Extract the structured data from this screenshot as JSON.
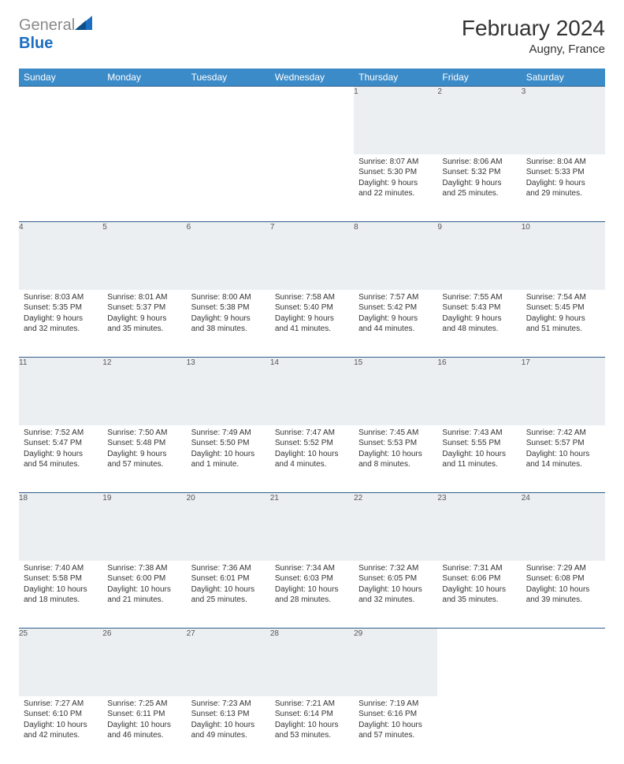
{
  "logo": {
    "general": "General",
    "blue": "Blue"
  },
  "title": "February 2024",
  "location": "Augny, France",
  "colors": {
    "header_bg": "#3b8bc9",
    "header_text": "#ffffff",
    "daynum_bg": "#eceff1",
    "border": "#2e5d8a",
    "logo_gray": "#8a8a8a",
    "logo_blue": "#1b6ec2"
  },
  "weekdays": [
    "Sunday",
    "Monday",
    "Tuesday",
    "Wednesday",
    "Thursday",
    "Friday",
    "Saturday"
  ],
  "weeks": [
    [
      null,
      null,
      null,
      null,
      {
        "n": "1",
        "sr": "Sunrise: 8:07 AM",
        "ss": "Sunset: 5:30 PM",
        "d1": "Daylight: 9 hours",
        "d2": "and 22 minutes."
      },
      {
        "n": "2",
        "sr": "Sunrise: 8:06 AM",
        "ss": "Sunset: 5:32 PM",
        "d1": "Daylight: 9 hours",
        "d2": "and 25 minutes."
      },
      {
        "n": "3",
        "sr": "Sunrise: 8:04 AM",
        "ss": "Sunset: 5:33 PM",
        "d1": "Daylight: 9 hours",
        "d2": "and 29 minutes."
      }
    ],
    [
      {
        "n": "4",
        "sr": "Sunrise: 8:03 AM",
        "ss": "Sunset: 5:35 PM",
        "d1": "Daylight: 9 hours",
        "d2": "and 32 minutes."
      },
      {
        "n": "5",
        "sr": "Sunrise: 8:01 AM",
        "ss": "Sunset: 5:37 PM",
        "d1": "Daylight: 9 hours",
        "d2": "and 35 minutes."
      },
      {
        "n": "6",
        "sr": "Sunrise: 8:00 AM",
        "ss": "Sunset: 5:38 PM",
        "d1": "Daylight: 9 hours",
        "d2": "and 38 minutes."
      },
      {
        "n": "7",
        "sr": "Sunrise: 7:58 AM",
        "ss": "Sunset: 5:40 PM",
        "d1": "Daylight: 9 hours",
        "d2": "and 41 minutes."
      },
      {
        "n": "8",
        "sr": "Sunrise: 7:57 AM",
        "ss": "Sunset: 5:42 PM",
        "d1": "Daylight: 9 hours",
        "d2": "and 44 minutes."
      },
      {
        "n": "9",
        "sr": "Sunrise: 7:55 AM",
        "ss": "Sunset: 5:43 PM",
        "d1": "Daylight: 9 hours",
        "d2": "and 48 minutes."
      },
      {
        "n": "10",
        "sr": "Sunrise: 7:54 AM",
        "ss": "Sunset: 5:45 PM",
        "d1": "Daylight: 9 hours",
        "d2": "and 51 minutes."
      }
    ],
    [
      {
        "n": "11",
        "sr": "Sunrise: 7:52 AM",
        "ss": "Sunset: 5:47 PM",
        "d1": "Daylight: 9 hours",
        "d2": "and 54 minutes."
      },
      {
        "n": "12",
        "sr": "Sunrise: 7:50 AM",
        "ss": "Sunset: 5:48 PM",
        "d1": "Daylight: 9 hours",
        "d2": "and 57 minutes."
      },
      {
        "n": "13",
        "sr": "Sunrise: 7:49 AM",
        "ss": "Sunset: 5:50 PM",
        "d1": "Daylight: 10 hours",
        "d2": "and 1 minute."
      },
      {
        "n": "14",
        "sr": "Sunrise: 7:47 AM",
        "ss": "Sunset: 5:52 PM",
        "d1": "Daylight: 10 hours",
        "d2": "and 4 minutes."
      },
      {
        "n": "15",
        "sr": "Sunrise: 7:45 AM",
        "ss": "Sunset: 5:53 PM",
        "d1": "Daylight: 10 hours",
        "d2": "and 8 minutes."
      },
      {
        "n": "16",
        "sr": "Sunrise: 7:43 AM",
        "ss": "Sunset: 5:55 PM",
        "d1": "Daylight: 10 hours",
        "d2": "and 11 minutes."
      },
      {
        "n": "17",
        "sr": "Sunrise: 7:42 AM",
        "ss": "Sunset: 5:57 PM",
        "d1": "Daylight: 10 hours",
        "d2": "and 14 minutes."
      }
    ],
    [
      {
        "n": "18",
        "sr": "Sunrise: 7:40 AM",
        "ss": "Sunset: 5:58 PM",
        "d1": "Daylight: 10 hours",
        "d2": "and 18 minutes."
      },
      {
        "n": "19",
        "sr": "Sunrise: 7:38 AM",
        "ss": "Sunset: 6:00 PM",
        "d1": "Daylight: 10 hours",
        "d2": "and 21 minutes."
      },
      {
        "n": "20",
        "sr": "Sunrise: 7:36 AM",
        "ss": "Sunset: 6:01 PM",
        "d1": "Daylight: 10 hours",
        "d2": "and 25 minutes."
      },
      {
        "n": "21",
        "sr": "Sunrise: 7:34 AM",
        "ss": "Sunset: 6:03 PM",
        "d1": "Daylight: 10 hours",
        "d2": "and 28 minutes."
      },
      {
        "n": "22",
        "sr": "Sunrise: 7:32 AM",
        "ss": "Sunset: 6:05 PM",
        "d1": "Daylight: 10 hours",
        "d2": "and 32 minutes."
      },
      {
        "n": "23",
        "sr": "Sunrise: 7:31 AM",
        "ss": "Sunset: 6:06 PM",
        "d1": "Daylight: 10 hours",
        "d2": "and 35 minutes."
      },
      {
        "n": "24",
        "sr": "Sunrise: 7:29 AM",
        "ss": "Sunset: 6:08 PM",
        "d1": "Daylight: 10 hours",
        "d2": "and 39 minutes."
      }
    ],
    [
      {
        "n": "25",
        "sr": "Sunrise: 7:27 AM",
        "ss": "Sunset: 6:10 PM",
        "d1": "Daylight: 10 hours",
        "d2": "and 42 minutes."
      },
      {
        "n": "26",
        "sr": "Sunrise: 7:25 AM",
        "ss": "Sunset: 6:11 PM",
        "d1": "Daylight: 10 hours",
        "d2": "and 46 minutes."
      },
      {
        "n": "27",
        "sr": "Sunrise: 7:23 AM",
        "ss": "Sunset: 6:13 PM",
        "d1": "Daylight: 10 hours",
        "d2": "and 49 minutes."
      },
      {
        "n": "28",
        "sr": "Sunrise: 7:21 AM",
        "ss": "Sunset: 6:14 PM",
        "d1": "Daylight: 10 hours",
        "d2": "and 53 minutes."
      },
      {
        "n": "29",
        "sr": "Sunrise: 7:19 AM",
        "ss": "Sunset: 6:16 PM",
        "d1": "Daylight: 10 hours",
        "d2": "and 57 minutes."
      },
      null,
      null
    ]
  ]
}
